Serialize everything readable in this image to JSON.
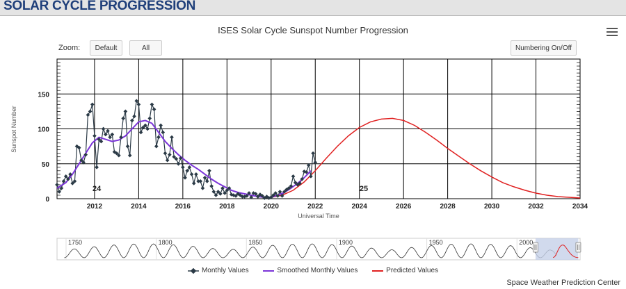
{
  "header": {
    "title": "SOLAR CYCLE PROGRESSION"
  },
  "controls": {
    "zoom_label": "Zoom:",
    "default_label": "Default",
    "all_label": "All",
    "numbering_label": "Numbering On/Off"
  },
  "credit": "Space Weather Prediction Center",
  "colors": {
    "monthly": "#2b3a46",
    "smoothed": "#7b34d8",
    "predicted": "#e02020",
    "header_text": "#1f3f7a"
  },
  "chart_data": {
    "type": "line",
    "title": "ISES Solar Cycle Sunspot Number Progression",
    "xlabel": "Universal Time",
    "ylabel": "Sunspot Number",
    "xlim": [
      2010.3,
      2034
    ],
    "ylim": [
      0,
      200
    ],
    "x_ticks": [
      "2012",
      "2014",
      "2016",
      "2018",
      "2020",
      "2022",
      "2024",
      "2026",
      "2028",
      "2030",
      "2032",
      "2034"
    ],
    "y_ticks": [
      "0",
      "50",
      "100",
      "150"
    ],
    "cycle_labels": [
      {
        "text": "24",
        "x": 2012.1,
        "y": 15
      },
      {
        "text": "25",
        "x": 2024.2,
        "y": 15
      }
    ],
    "legend": [
      "Monthly Values",
      "Smoothed Monthly Values",
      "Predicted Values"
    ],
    "series": [
      {
        "name": "Monthly Values",
        "x": [
          2010.3,
          2010.4,
          2010.5,
          2010.6,
          2010.7,
          2010.8,
          2010.9,
          2011.0,
          2011.1,
          2011.2,
          2011.3,
          2011.4,
          2011.5,
          2011.6,
          2011.7,
          2011.8,
          2011.9,
          2012.0,
          2012.1,
          2012.2,
          2012.3,
          2012.4,
          2012.5,
          2012.6,
          2012.7,
          2012.8,
          2012.9,
          2013.0,
          2013.1,
          2013.2,
          2013.3,
          2013.4,
          2013.5,
          2013.6,
          2013.7,
          2013.8,
          2013.9,
          2014.0,
          2014.1,
          2014.2,
          2014.3,
          2014.4,
          2014.5,
          2014.6,
          2014.7,
          2014.8,
          2014.9,
          2015.0,
          2015.1,
          2015.2,
          2015.3,
          2015.4,
          2015.5,
          2015.6,
          2015.7,
          2015.8,
          2015.9,
          2016.0,
          2016.1,
          2016.2,
          2016.3,
          2016.4,
          2016.5,
          2016.6,
          2016.7,
          2016.8,
          2016.9,
          2017.0,
          2017.1,
          2017.2,
          2017.3,
          2017.4,
          2017.5,
          2017.6,
          2017.7,
          2017.8,
          2017.9,
          2018.0,
          2018.1,
          2018.2,
          2018.3,
          2018.4,
          2018.5,
          2018.6,
          2018.7,
          2018.8,
          2018.9,
          2019.0,
          2019.1,
          2019.2,
          2019.3,
          2019.4,
          2019.5,
          2019.6,
          2019.7,
          2019.8,
          2019.9,
          2020.0,
          2020.1,
          2020.2,
          2020.3,
          2020.4,
          2020.5,
          2020.6,
          2020.7,
          2020.8,
          2020.9,
          2021.0,
          2021.1,
          2021.2,
          2021.3,
          2021.4,
          2021.5,
          2021.6,
          2021.7,
          2021.8,
          2021.9,
          2022.0
        ],
        "y": [
          20,
          10,
          15,
          25,
          32,
          28,
          35,
          22,
          25,
          75,
          73,
          55,
          52,
          63,
          120,
          125,
          135,
          90,
          45,
          85,
          82,
          100,
          92,
          97,
          88,
          92,
          67,
          65,
          62,
          88,
          115,
          125,
          75,
          62,
          112,
          118,
          140,
          135,
          95,
          102,
          105,
          100,
          115,
          135,
          128,
          75,
          88,
          105,
          95,
          65,
          55,
          63,
          88,
          60,
          57,
          50,
          58,
          45,
          30,
          40,
          45,
          35,
          22,
          35,
          25,
          25,
          15,
          30,
          25,
          40,
          18,
          10,
          5,
          10,
          7,
          15,
          8,
          12,
          15,
          6,
          5,
          4,
          7,
          5,
          3,
          3,
          4,
          8,
          2,
          8,
          7,
          3,
          6,
          4,
          1,
          3,
          1,
          2,
          5,
          8,
          4,
          10,
          4,
          10,
          13,
          15,
          18,
          32,
          23,
          20,
          22,
          28,
          39,
          38,
          48,
          32,
          65,
          52
        ],
        "color": "#2b3a46"
      },
      {
        "name": "Smoothed Monthly Values",
        "x": [
          2010.3,
          2010.7,
          2011.0,
          2011.3,
          2011.6,
          2011.9,
          2012.2,
          2012.5,
          2012.8,
          2013.1,
          2013.4,
          2013.7,
          2014.0,
          2014.3,
          2014.6,
          2014.9,
          2015.2,
          2015.5,
          2015.8,
          2016.1,
          2016.4,
          2016.7,
          2017.0,
          2017.3,
          2017.6,
          2017.9,
          2018.2,
          2018.5,
          2018.8,
          2019.1,
          2019.4,
          2019.7,
          2020.0,
          2020.3,
          2020.6,
          2020.9,
          2021.2,
          2021.5,
          2021.8
        ],
        "y": [
          15,
          23,
          35,
          50,
          65,
          80,
          88,
          85,
          82,
          84,
          90,
          100,
          110,
          112,
          108,
          95,
          82,
          72,
          63,
          55,
          48,
          42,
          35,
          28,
          22,
          17,
          12,
          9,
          7,
          5,
          3,
          2,
          2,
          5,
          9,
          15,
          22,
          30,
          40
        ],
        "color": "#7b34d8"
      },
      {
        "name": "Predicted Values",
        "x": [
          2020.0,
          2020.5,
          2021.0,
          2021.5,
          2022.0,
          2022.5,
          2023.0,
          2023.5,
          2024.0,
          2024.5,
          2025.0,
          2025.5,
          2026.0,
          2026.5,
          2027.0,
          2027.5,
          2028.0,
          2028.5,
          2029.0,
          2029.5,
          2030.0,
          2030.5,
          2031.0,
          2031.5,
          2032.0,
          2032.5,
          2033.0,
          2033.5,
          2034.0
        ],
        "y": [
          2,
          5,
          12,
          24,
          40,
          58,
          75,
          90,
          102,
          110,
          114,
          115,
          112,
          105,
          95,
          84,
          72,
          61,
          50,
          40,
          31,
          23,
          17,
          12,
          8,
          5,
          3,
          2,
          1
        ],
        "color": "#e02020"
      }
    ],
    "navigator": {
      "x_ticks": [
        "1750",
        "1800",
        "1850",
        "1900",
        "1950",
        "2000"
      ],
      "xlim": [
        1745,
        2035
      ]
    }
  }
}
